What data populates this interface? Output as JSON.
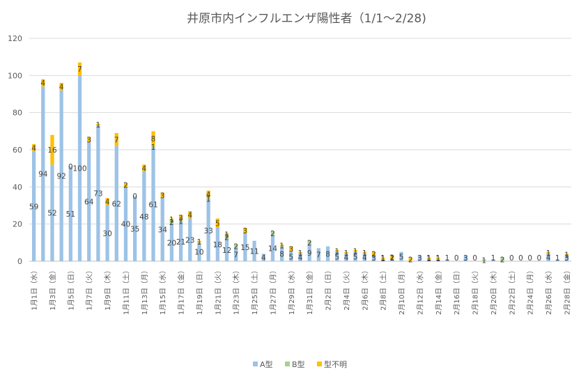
{
  "chart_data": {
    "type": "bar",
    "stacked": true,
    "title": "井原市内インフルエンザ陽性者（1/1～2/28)",
    "ylim": [
      0,
      120
    ],
    "yticks": [
      0,
      20,
      40,
      60,
      80,
      100,
      120
    ],
    "grid": true,
    "legend_position": "bottom",
    "x_tick_labels": [
      "1月1日（水）",
      "1月3日（金）",
      "1月5日（日）",
      "1月7日（火）",
      "1月9日（木）",
      "1月11日（土）",
      "1月13日（月）",
      "1月15日（水）",
      "1月17日（金）",
      "1月19日（日）",
      "1月21日（火）",
      "1月23日（木）",
      "1月25日（土）",
      "1月27日（月）",
      "1月29日（水）",
      "1月31日（金）",
      "2月2日（日）",
      "2月4日（火）",
      "2月6日（木）",
      "2月8日（土）",
      "2月10日（月）",
      "2月12日（水）",
      "2月14日（金）",
      "2月16日（日）",
      "2月18日（火）",
      "2月20日（木）",
      "2月22日（土）",
      "2月24日（月）",
      "2月26日（水）",
      "2月28日（金）"
    ],
    "series": [
      {
        "name": "A型",
        "color": "#9dc3e6",
        "values": [
          59,
          94,
          52,
          92,
          51,
          100,
          64,
          73,
          30,
          62,
          40,
          35,
          48,
          61,
          34,
          20,
          21,
          23,
          10,
          33,
          18,
          12,
          7,
          15,
          11,
          4,
          14,
          8,
          5,
          4,
          9,
          7,
          8,
          5,
          4,
          5,
          4,
          3,
          1,
          1,
          5,
          0,
          3,
          1,
          1,
          1,
          0,
          3,
          0,
          0,
          1,
          0,
          0,
          0,
          0,
          0,
          4,
          1,
          3
        ],
        "labels": [
          "59",
          "94",
          "52",
          "92",
          "51",
          "100",
          "64",
          "73",
          "30",
          "62",
          "40",
          "35",
          "48",
          "61",
          "34",
          "20",
          "21",
          "23",
          "10",
          "33",
          "18",
          "12",
          "7",
          "15",
          "11",
          "4",
          "14",
          "8",
          "5",
          "4",
          "9",
          "7",
          "8",
          "5",
          "4",
          "5",
          "4",
          "3",
          "1",
          "1",
          "5",
          "",
          "3",
          "1",
          "1",
          "1",
          "0",
          "3",
          "0",
          "",
          "1",
          "",
          "0",
          "0",
          "0",
          "0",
          "4",
          "1",
          "3"
        ]
      },
      {
        "name": "B型",
        "color": "#a9d18e",
        "values": [
          0,
          0,
          0,
          0,
          0,
          0,
          0,
          0,
          0,
          0,
          0,
          0,
          0,
          1,
          0,
          2,
          1,
          0,
          0,
          1,
          0,
          2,
          2,
          0,
          0,
          0,
          2,
          0,
          0,
          0,
          2,
          0,
          0,
          0,
          0,
          0,
          0,
          0,
          0,
          0,
          0,
          0,
          0,
          0,
          0,
          0,
          0,
          0,
          0,
          1,
          0,
          2,
          0,
          0,
          0,
          0,
          0,
          0,
          0
        ],
        "labels": [
          "",
          "",
          "",
          "",
          "",
          "",
          "",
          "",
          "",
          "",
          "",
          "",
          "",
          "1",
          "",
          "2",
          "1",
          "",
          "",
          "1",
          "",
          "2",
          "2",
          "",
          "",
          "",
          "2",
          "",
          "",
          "",
          "2",
          "",
          "",
          "",
          "",
          "",
          "",
          "",
          "",
          "",
          "",
          "",
          "",
          "",
          "",
          "",
          "",
          "",
          "",
          "1",
          "",
          "2",
          "",
          "",
          "",
          "",
          "",
          "",
          ""
        ]
      },
      {
        "name": "型不明",
        "color": "#ffc000",
        "values": [
          4,
          4,
          16,
          4,
          0,
          7,
          3,
          1,
          4,
          7,
          2,
          0,
          4,
          8,
          3,
          1,
          3,
          4,
          1,
          4,
          5,
          1,
          0,
          3,
          0,
          0,
          0,
          1,
          3,
          1,
          0,
          0,
          0,
          1,
          1,
          1,
          1,
          2,
          1,
          2,
          0,
          2,
          0,
          1,
          1,
          0,
          0,
          0,
          0,
          0,
          0,
          0,
          0,
          0,
          0,
          0,
          1,
          0,
          1
        ],
        "labels": [
          "4",
          "4",
          "16",
          "4",
          "0",
          "7",
          "3",
          "1",
          "4",
          "7",
          "2",
          "0",
          "4",
          "8",
          "3",
          "1",
          "3",
          "4",
          "1",
          "4",
          "5",
          "1",
          "",
          "3",
          "",
          "",
          "",
          "1",
          "3",
          "1",
          "",
          "",
          "",
          "1",
          "1",
          "1",
          "1",
          "2",
          "1",
          "2",
          "",
          "2",
          "",
          "1",
          "1",
          "",
          "",
          "",
          "",
          "",
          "",
          "",
          "",
          "",
          "",
          "",
          "1",
          "",
          "1"
        ]
      }
    ]
  }
}
